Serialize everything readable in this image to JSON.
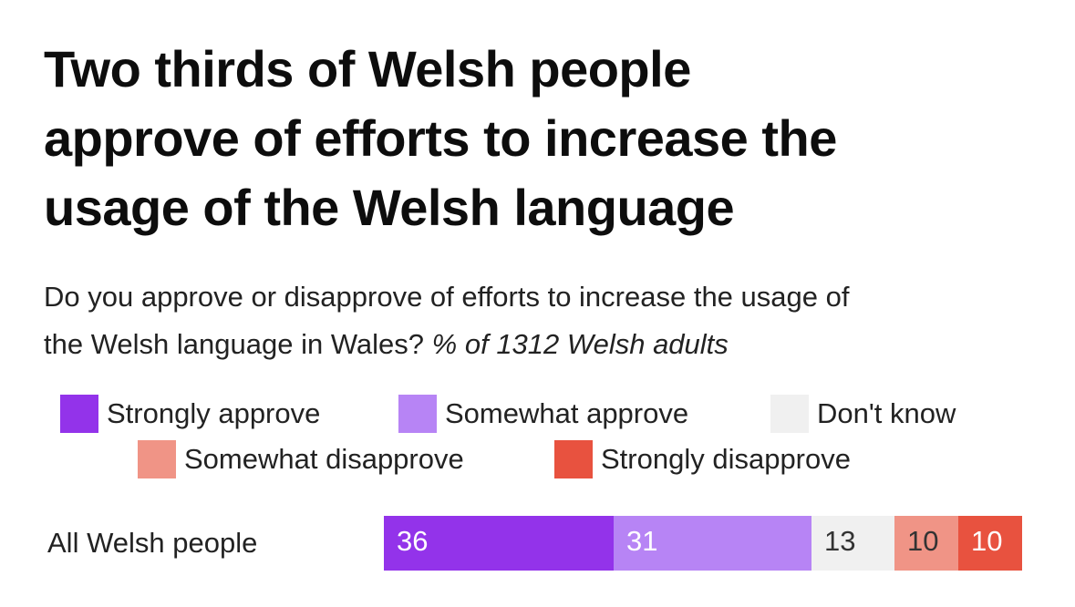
{
  "title_lines": [
    "Two thirds of Welsh people",
    "approve of efforts to increase the",
    "usage of the Welsh language"
  ],
  "subtitle": {
    "line1": "Do you approve or disapprove of efforts to increase the usage of",
    "line2_plain": "the Welsh language in Wales?",
    "line2_italic": "% of 1312 Welsh adults"
  },
  "chart_data": {
    "type": "bar",
    "orientation": "horizontal",
    "stacked": true,
    "title": "Two thirds of Welsh people approve of efforts to increase the usage of the Welsh language",
    "subtitle": "Do you approve or disapprove of efforts to increase the usage of the Welsh language in Wales? % of 1312 Welsh adults",
    "categories": [
      "All Welsh people"
    ],
    "xlim": [
      0,
      100
    ],
    "series": [
      {
        "name": "Strongly approve",
        "values": [
          36
        ],
        "color": "#9333ea",
        "label_color": "#ffffff"
      },
      {
        "name": "Somewhat approve",
        "values": [
          31
        ],
        "color": "#b784f5",
        "label_color": "#ffffff"
      },
      {
        "name": "Don't know",
        "values": [
          13
        ],
        "color": "#f0f0f0",
        "label_color": "#333333"
      },
      {
        "name": "Somewhat disapprove",
        "values": [
          10
        ],
        "color": "#f09486",
        "label_color": "#333333"
      },
      {
        "name": "Strongly disapprove",
        "values": [
          10
        ],
        "color": "#e8523f",
        "label_color": "#ffffff"
      }
    ],
    "legend_position": "top"
  }
}
